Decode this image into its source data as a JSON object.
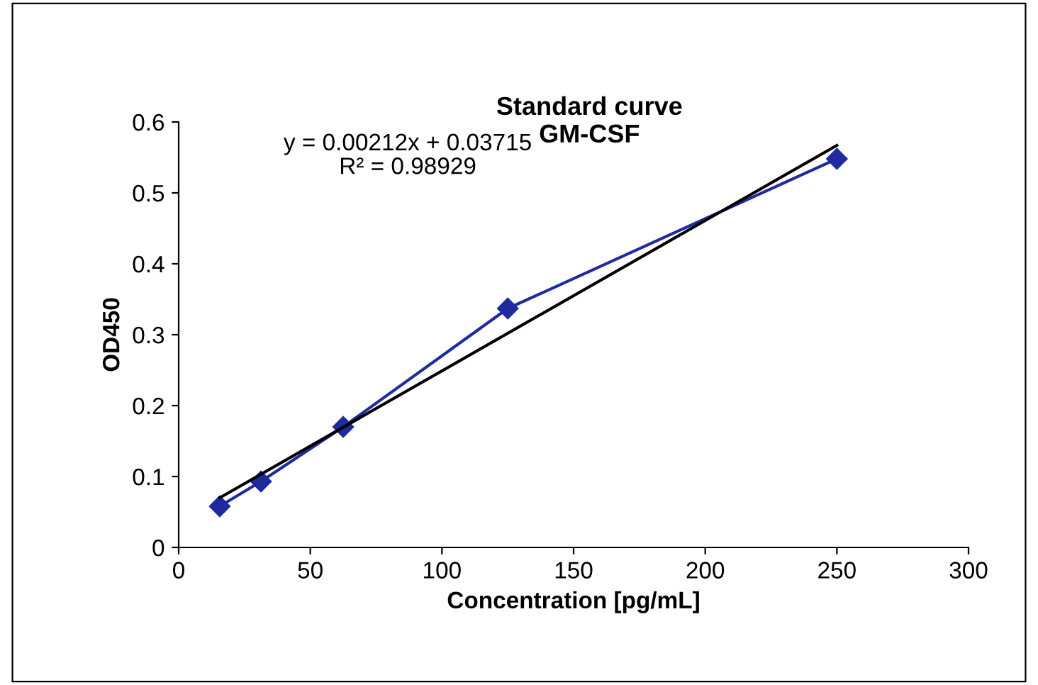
{
  "chart_data": {
    "type": "line",
    "title": "Standard curve\nGM-CSF",
    "xlabel": "Concentration [pg/mL]",
    "ylabel": "OD450",
    "annotations": [
      "y = 0.00212x + 0.03715\nR² = 0.98929"
    ],
    "series": [
      {
        "color": "#1f2a9e",
        "x": [
          15.6,
          31.25,
          62.5,
          125,
          250
        ],
        "values": [
          0.058,
          0.093,
          0.17,
          0.337,
          0.548
        ],
        "marker": "diamond"
      },
      {
        "color": "#000000",
        "x": [
          15.6,
          250
        ],
        "values": [
          0.07,
          0.567
        ],
        "marker": "none"
      }
    ],
    "xlim": [
      0,
      300
    ],
    "xticks": [
      0,
      50,
      100,
      150,
      200,
      250,
      300
    ],
    "ylim": [
      0,
      0.6
    ],
    "yticks": [
      0,
      0.1,
      0.2,
      0.3,
      0.4,
      0.5,
      0.6
    ],
    "grid": false,
    "legend": false,
    "line_style": "solid"
  }
}
